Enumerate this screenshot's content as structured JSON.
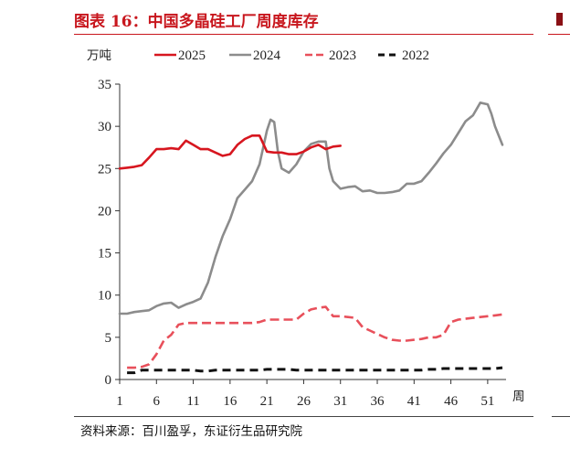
{
  "title": "图表 16：中国多晶硅工厂周度库存",
  "source": "资料来源：百川盈孚，东证衍生品研究院",
  "chart_data": {
    "type": "line",
    "ylabel": "万吨",
    "xlabel": "周",
    "ylim": [
      0,
      35
    ],
    "xlim": [
      1,
      53
    ],
    "yticks": [
      0,
      5,
      10,
      15,
      20,
      25,
      30,
      35
    ],
    "xticks": [
      1,
      6,
      11,
      16,
      21,
      26,
      31,
      36,
      41,
      46,
      51
    ],
    "legend_position": "top",
    "series": [
      {
        "name": "2025",
        "color": "#d7161f",
        "dash": "solid",
        "points": [
          [
            1,
            25.0
          ],
          [
            2,
            25.1
          ],
          [
            3,
            25.2
          ],
          [
            4,
            25.4
          ],
          [
            5,
            26.3
          ],
          [
            6,
            27.3
          ],
          [
            7,
            27.3
          ],
          [
            8,
            27.4
          ],
          [
            9,
            27.3
          ],
          [
            10,
            28.3
          ],
          [
            11,
            27.8
          ],
          [
            12,
            27.3
          ],
          [
            13,
            27.3
          ],
          [
            14,
            26.9
          ],
          [
            15,
            26.5
          ],
          [
            16,
            26.7
          ],
          [
            17,
            27.8
          ],
          [
            18,
            28.5
          ],
          [
            19,
            28.9
          ],
          [
            20,
            28.9
          ],
          [
            21,
            27.0
          ],
          [
            22,
            26.9
          ],
          [
            23,
            26.9
          ],
          [
            24,
            26.7
          ],
          [
            25,
            26.7
          ],
          [
            26,
            27.0
          ],
          [
            27,
            27.5
          ],
          [
            28,
            27.8
          ],
          [
            29,
            27.3
          ],
          [
            30,
            27.6
          ],
          [
            31,
            27.7
          ]
        ]
      },
      {
        "name": "2024",
        "color": "#8c8c8c",
        "dash": "solid",
        "points": [
          [
            1,
            7.8
          ],
          [
            2,
            7.8
          ],
          [
            3,
            8.0
          ],
          [
            4,
            8.1
          ],
          [
            5,
            8.2
          ],
          [
            6,
            8.7
          ],
          [
            7,
            9.0
          ],
          [
            8,
            9.1
          ],
          [
            9,
            8.5
          ],
          [
            10,
            8.9
          ],
          [
            11,
            9.2
          ],
          [
            12,
            9.6
          ],
          [
            13,
            11.5
          ],
          [
            14,
            14.5
          ],
          [
            15,
            17.0
          ],
          [
            16,
            19.0
          ],
          [
            17,
            21.5
          ],
          [
            18,
            22.5
          ],
          [
            19,
            23.5
          ],
          [
            20,
            25.5
          ],
          [
            21,
            29.5
          ],
          [
            21.5,
            30.8
          ],
          [
            22,
            30.5
          ],
          [
            22.5,
            27.0
          ],
          [
            23,
            25.0
          ],
          [
            24,
            24.5
          ],
          [
            25,
            25.5
          ],
          [
            26,
            27.0
          ],
          [
            27,
            27.9
          ],
          [
            28,
            28.2
          ],
          [
            29,
            28.2
          ],
          [
            29.5,
            25.0
          ],
          [
            30,
            23.5
          ],
          [
            31,
            22.6
          ],
          [
            32,
            22.8
          ],
          [
            33,
            22.9
          ],
          [
            34,
            22.3
          ],
          [
            35,
            22.4
          ],
          [
            36,
            22.1
          ],
          [
            37,
            22.1
          ],
          [
            38,
            22.2
          ],
          [
            39,
            22.4
          ],
          [
            40,
            23.2
          ],
          [
            41,
            23.2
          ],
          [
            42,
            23.5
          ],
          [
            43,
            24.5
          ],
          [
            44,
            25.6
          ],
          [
            45,
            26.8
          ],
          [
            46,
            27.8
          ],
          [
            47,
            29.2
          ],
          [
            48,
            30.6
          ],
          [
            49,
            31.3
          ],
          [
            50,
            32.8
          ],
          [
            51,
            32.6
          ],
          [
            51.5,
            31.5
          ],
          [
            52,
            30.0
          ],
          [
            53,
            27.8
          ]
        ]
      },
      {
        "name": "2023",
        "color": "#e8505b",
        "dash": "dashed",
        "points": [
          [
            2,
            1.4
          ],
          [
            3,
            1.4
          ],
          [
            4,
            1.5
          ],
          [
            5,
            1.8
          ],
          [
            6,
            3.0
          ],
          [
            7,
            4.6
          ],
          [
            8,
            5.3
          ],
          [
            9,
            6.5
          ],
          [
            10,
            6.7
          ],
          [
            11,
            6.7
          ],
          [
            12,
            6.7
          ],
          [
            13,
            6.7
          ],
          [
            14,
            6.7
          ],
          [
            15,
            6.7
          ],
          [
            16,
            6.7
          ],
          [
            17,
            6.7
          ],
          [
            18,
            6.7
          ],
          [
            19,
            6.7
          ],
          [
            20,
            6.8
          ],
          [
            21,
            7.1
          ],
          [
            22,
            7.1
          ],
          [
            23,
            7.1
          ],
          [
            24,
            7.1
          ],
          [
            25,
            7.1
          ],
          [
            26,
            7.8
          ],
          [
            27,
            8.3
          ],
          [
            28,
            8.5
          ],
          [
            29,
            8.6
          ],
          [
            30,
            7.5
          ],
          [
            31,
            7.5
          ],
          [
            32,
            7.4
          ],
          [
            33,
            7.3
          ],
          [
            34,
            6.2
          ],
          [
            35,
            5.8
          ],
          [
            36,
            5.4
          ],
          [
            37,
            5.0
          ],
          [
            38,
            4.7
          ],
          [
            39,
            4.6
          ],
          [
            40,
            4.6
          ],
          [
            41,
            4.7
          ],
          [
            42,
            4.8
          ],
          [
            43,
            5.0
          ],
          [
            44,
            5.0
          ],
          [
            45,
            5.3
          ],
          [
            46,
            6.8
          ],
          [
            47,
            7.1
          ],
          [
            48,
            7.2
          ],
          [
            49,
            7.3
          ],
          [
            50,
            7.4
          ],
          [
            51,
            7.5
          ],
          [
            52,
            7.6
          ],
          [
            53,
            7.7
          ]
        ]
      },
      {
        "name": "2022",
        "color": "#111111",
        "dash": "dashed",
        "points": [
          [
            2,
            0.8
          ],
          [
            3,
            0.8
          ],
          [
            4,
            1.1
          ],
          [
            5,
            1.1
          ],
          [
            6,
            1.1
          ],
          [
            7,
            1.1
          ],
          [
            8,
            1.1
          ],
          [
            9,
            1.1
          ],
          [
            10,
            1.1
          ],
          [
            11,
            1.1
          ],
          [
            12,
            1.0
          ],
          [
            13,
            1.0
          ],
          [
            14,
            1.1
          ],
          [
            15,
            1.1
          ],
          [
            16,
            1.1
          ],
          [
            17,
            1.1
          ],
          [
            18,
            1.1
          ],
          [
            19,
            1.1
          ],
          [
            20,
            1.1
          ],
          [
            21,
            1.2
          ],
          [
            22,
            1.2
          ],
          [
            23,
            1.2
          ],
          [
            24,
            1.2
          ],
          [
            25,
            1.1
          ],
          [
            26,
            1.1
          ],
          [
            27,
            1.1
          ],
          [
            28,
            1.1
          ],
          [
            29,
            1.1
          ],
          [
            30,
            1.1
          ],
          [
            31,
            1.1
          ],
          [
            32,
            1.1
          ],
          [
            33,
            1.1
          ],
          [
            34,
            1.1
          ],
          [
            35,
            1.1
          ],
          [
            36,
            1.1
          ],
          [
            37,
            1.1
          ],
          [
            38,
            1.1
          ],
          [
            39,
            1.1
          ],
          [
            40,
            1.1
          ],
          [
            41,
            1.1
          ],
          [
            42,
            1.1
          ],
          [
            43,
            1.2
          ],
          [
            44,
            1.2
          ],
          [
            45,
            1.3
          ],
          [
            46,
            1.3
          ],
          [
            47,
            1.3
          ],
          [
            48,
            1.3
          ],
          [
            49,
            1.3
          ],
          [
            50,
            1.3
          ],
          [
            51,
            1.3
          ],
          [
            52,
            1.3
          ],
          [
            53,
            1.4
          ]
        ]
      }
    ]
  }
}
